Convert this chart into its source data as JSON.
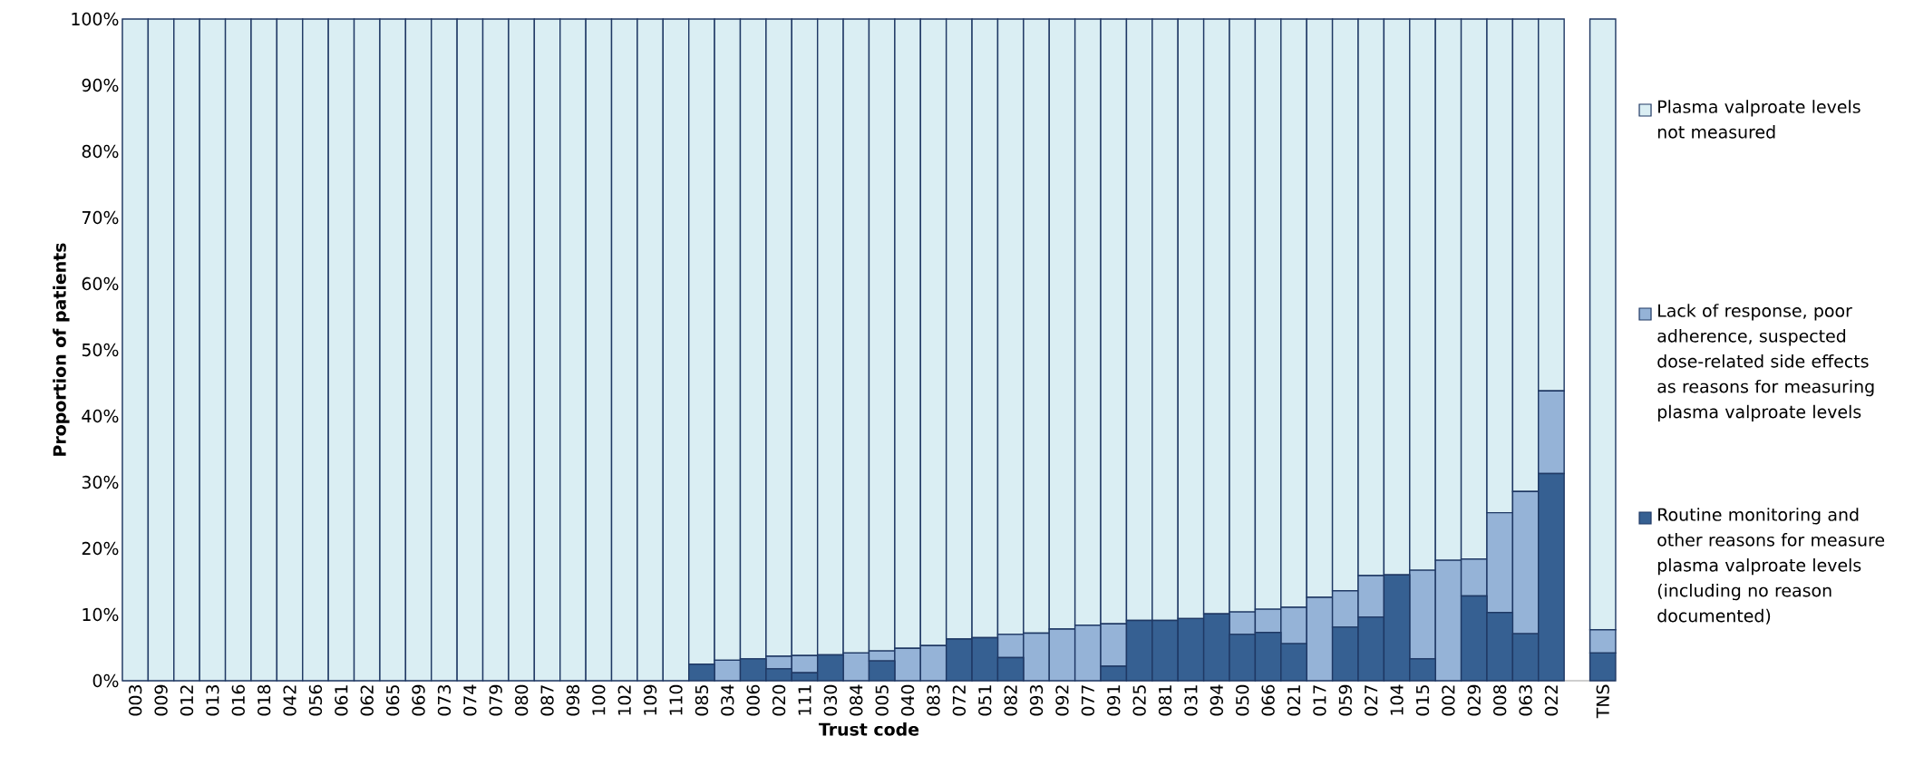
{
  "chart_data": {
    "type": "bar",
    "stacked": true,
    "xlabel": "Trust code",
    "ylabel": "Proportion of patients",
    "categories": [
      "003",
      "009",
      "012",
      "013",
      "016",
      "018",
      "042",
      "056",
      "061",
      "062",
      "065",
      "069",
      "073",
      "074",
      "079",
      "080",
      "087",
      "098",
      "100",
      "102",
      "109",
      "110",
      "085",
      "034",
      "006",
      "020",
      "111",
      "030",
      "084",
      "005",
      "040",
      "083",
      "072",
      "051",
      "082",
      "093",
      "092",
      "077",
      "091",
      "025",
      "081",
      "031",
      "094",
      "050",
      "066",
      "021",
      "017",
      "059",
      "027",
      "104",
      "015",
      "002",
      "029",
      "008",
      "063",
      "022",
      null,
      "TNS"
    ],
    "series": [
      {
        "name": "Routine monitoring and other reasons for measure plasma valproate levels (including no reason documented)",
        "color": "#366092",
        "values": [
          0,
          0,
          0,
          0,
          0,
          0,
          0,
          0,
          0,
          0,
          0,
          0,
          0,
          0,
          0,
          0,
          0,
          0,
          0,
          0,
          0,
          0,
          2.5,
          0,
          3.3,
          1.8,
          1.2,
          3.9,
          0,
          3.0,
          0,
          0,
          6.3,
          6.5,
          3.5,
          0,
          0,
          0,
          2.2,
          9.1,
          9.1,
          9.4,
          10.1,
          7.0,
          7.3,
          5.6,
          0,
          8.1,
          9.6,
          16.0,
          3.3,
          0,
          12.8,
          10.3,
          7.1,
          31.3,
          null,
          4.2
        ]
      },
      {
        "name": "Lack of response, poor adherence, suspected dose-related side effects as reasons for measuring plasma valproate levels",
        "color": "#95b3d7",
        "values": [
          0,
          0,
          0,
          0,
          0,
          0,
          0,
          0,
          0,
          0,
          0,
          0,
          0,
          0,
          0,
          0,
          0,
          0,
          0,
          0,
          0,
          0,
          0,
          3.1,
          0,
          1.9,
          2.6,
          0,
          4.2,
          1.5,
          4.9,
          5.3,
          0,
          0,
          3.5,
          7.2,
          7.8,
          8.4,
          6.4,
          0,
          0,
          0,
          0,
          3.4,
          3.5,
          5.5,
          12.6,
          5.5,
          6.3,
          0,
          13.4,
          18.2,
          5.6,
          15.1,
          21.5,
          12.5,
          null,
          3.5
        ]
      },
      {
        "name": "Plasma valproate levels not measured",
        "color": "#daeef3",
        "values": [
          100,
          100,
          100,
          100,
          100,
          100,
          100,
          100,
          100,
          100,
          100,
          100,
          100,
          100,
          100,
          100,
          100,
          100,
          100,
          100,
          100,
          100,
          97.5,
          96.9,
          96.7,
          96.3,
          96.2,
          96.1,
          95.8,
          95.5,
          95.1,
          94.7,
          93.7,
          93.5,
          93.0,
          92.8,
          92.2,
          91.6,
          91.4,
          90.9,
          90.9,
          90.6,
          89.9,
          89.6,
          89.2,
          88.9,
          87.4,
          86.4,
          84.1,
          84.0,
          83.3,
          81.8,
          81.6,
          74.6,
          71.4,
          56.2,
          null,
          92.3
        ]
      }
    ],
    "ylim": [
      0,
      100
    ],
    "yticks": [
      {
        "value": 0,
        "label": "0%"
      },
      {
        "value": 10,
        "label": "10%"
      },
      {
        "value": 20,
        "label": "20%"
      },
      {
        "value": 30,
        "label": "30%"
      },
      {
        "value": 40,
        "label": "40%"
      },
      {
        "value": 50,
        "label": "50%"
      },
      {
        "value": 60,
        "label": "60%"
      },
      {
        "value": 70,
        "label": "70%"
      },
      {
        "value": 80,
        "label": "80%"
      },
      {
        "value": 90,
        "label": "90%"
      },
      {
        "value": 100,
        "label": "100%"
      }
    ],
    "legend": "right",
    "grid": false
  }
}
